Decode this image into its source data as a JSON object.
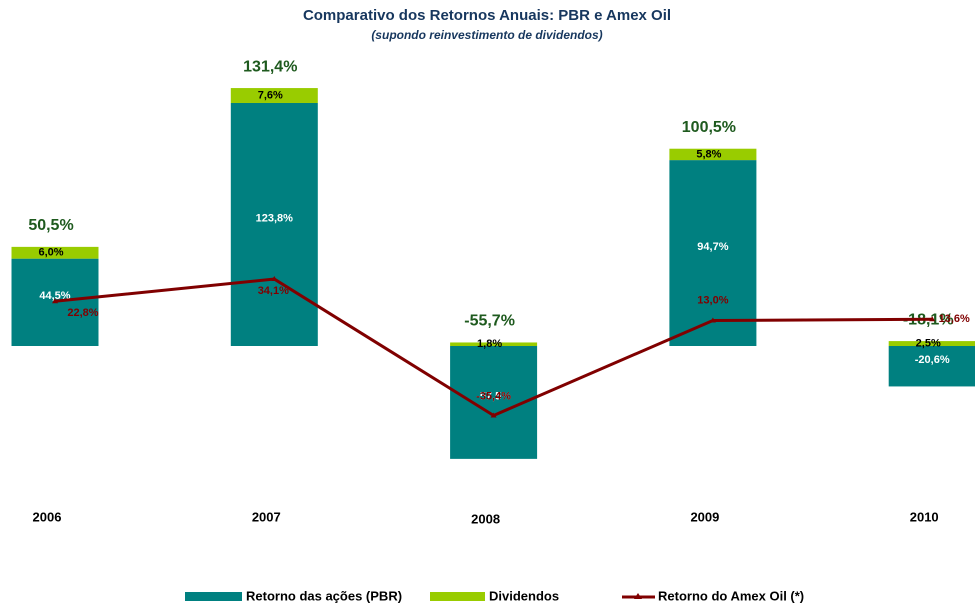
{
  "chart_data": {
    "type": "bar",
    "title": "Comparativo dos Retornos Anuais: PBR e Amex Oil",
    "subtitle": "(supondo reinvestimento de dividendos)",
    "categories": [
      "2006",
      "2007",
      "2008",
      "2009",
      "2010"
    ],
    "series": [
      {
        "name": "Retorno das ações (PBR)",
        "color": "#008080",
        "values": [
          44.5,
          123.8,
          -57.5,
          94.7,
          -20.6
        ],
        "value_labels": [
          "44,5%",
          "123,8%",
          "-57,5%",
          "94,7%",
          "-20,6%"
        ]
      },
      {
        "name": "Dividendos",
        "color": "#99cc00",
        "values": [
          6.0,
          7.6,
          1.8,
          5.8,
          2.5
        ],
        "value_labels": [
          "6,0%",
          "7,6%",
          "1,8%",
          "5,8%",
          "2,5%"
        ]
      },
      {
        "name": "Retorno do Amex Oil (*)",
        "type": "line",
        "color": "#800000",
        "values": [
          22.8,
          34.1,
          -35.4,
          13.0,
          13.6
        ],
        "value_labels": [
          "22,8%",
          "34,1%",
          "-35,4%",
          "13,0%",
          "13,6%"
        ]
      }
    ],
    "totals": {
      "values": [
        50.5,
        131.4,
        -55.7,
        100.5,
        -18.1
      ],
      "value_labels": [
        "50,5%",
        "131,4%",
        "-55,7%",
        "100,5%",
        "-18,1%"
      ]
    },
    "legend": "bottom"
  }
}
